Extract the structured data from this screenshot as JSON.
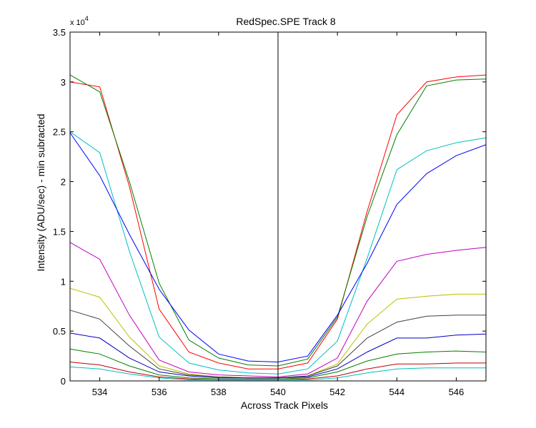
{
  "chart_data": {
    "type": "line",
    "title": "RedSpec.SPE   Track 8",
    "xlabel": "Across Track Pixels",
    "ylabel": "Intensity (ADU/sec) - min subracted",
    "y_exponent_label": "x 10",
    "y_exponent_power": "4",
    "xlim": [
      533,
      547
    ],
    "ylim": [
      0,
      35000
    ],
    "xticks": [
      534,
      536,
      538,
      540,
      542,
      544,
      546
    ],
    "yticks": [
      0,
      5000,
      10000,
      15000,
      20000,
      25000,
      30000,
      35000
    ],
    "ytick_labels": [
      "0",
      "0.5",
      "1",
      "1.5",
      "2",
      "2.5",
      "3",
      "3.5"
    ],
    "vline_x": 540,
    "grid": false,
    "x": [
      533,
      534,
      535,
      536,
      537,
      538,
      539,
      540,
      541,
      542,
      543,
      544,
      545,
      546,
      547
    ],
    "series": [
      {
        "color": "#ff0000",
        "values": [
          30000,
          29500,
          19500,
          7200,
          2900,
          1800,
          1200,
          1200,
          1800,
          6200,
          17000,
          26700,
          30000,
          30500,
          30700
        ]
      },
      {
        "color": "#008000",
        "values": [
          30700,
          29000,
          20000,
          9800,
          4100,
          2300,
          1600,
          1500,
          2200,
          6400,
          16500,
          24700,
          29600,
          30200,
          30300
        ]
      },
      {
        "color": "#00bfbf",
        "values": [
          25000,
          22900,
          13000,
          4400,
          1800,
          1100,
          800,
          700,
          1200,
          4000,
          12300,
          21200,
          23100,
          23900,
          24400
        ]
      },
      {
        "color": "#0000ff",
        "values": [
          24900,
          20600,
          14700,
          9200,
          5100,
          2700,
          2000,
          1900,
          2500,
          6600,
          11800,
          17700,
          20800,
          22600,
          23700
        ]
      },
      {
        "color": "#bf00bf",
        "values": [
          13900,
          12200,
          6600,
          2100,
          900,
          600,
          500,
          400,
          700,
          2300,
          8000,
          12000,
          12700,
          13100,
          13400
        ]
      },
      {
        "color": "#bfbf00",
        "values": [
          9300,
          8400,
          4400,
          1500,
          700,
          400,
          300,
          300,
          500,
          1700,
          5700,
          8200,
          8500,
          8700,
          8700
        ]
      },
      {
        "color": "#404040",
        "values": [
          7100,
          6200,
          3500,
          1200,
          600,
          400,
          300,
          300,
          500,
          1500,
          4300,
          5900,
          6500,
          6600,
          6600
        ]
      },
      {
        "color": "#0000bf",
        "values": [
          4800,
          4300,
          2300,
          900,
          500,
          300,
          300,
          300,
          400,
          1200,
          2900,
          4300,
          4300,
          4600,
          4700
        ]
      },
      {
        "color": "#007f00",
        "values": [
          3200,
          2700,
          1500,
          600,
          300,
          200,
          200,
          200,
          300,
          900,
          2000,
          2700,
          2900,
          3000,
          2900
        ]
      },
      {
        "color": "#bf0000",
        "values": [
          1900,
          1600,
          900,
          400,
          200,
          100,
          100,
          100,
          200,
          500,
          1200,
          1700,
          1700,
          1800,
          1800
        ]
      },
      {
        "color": "#00bfbf",
        "values": [
          1400,
          1200,
          700,
          300,
          100,
          100,
          100,
          100,
          100,
          300,
          800,
          1200,
          1300,
          1300,
          1300
        ]
      }
    ]
  }
}
